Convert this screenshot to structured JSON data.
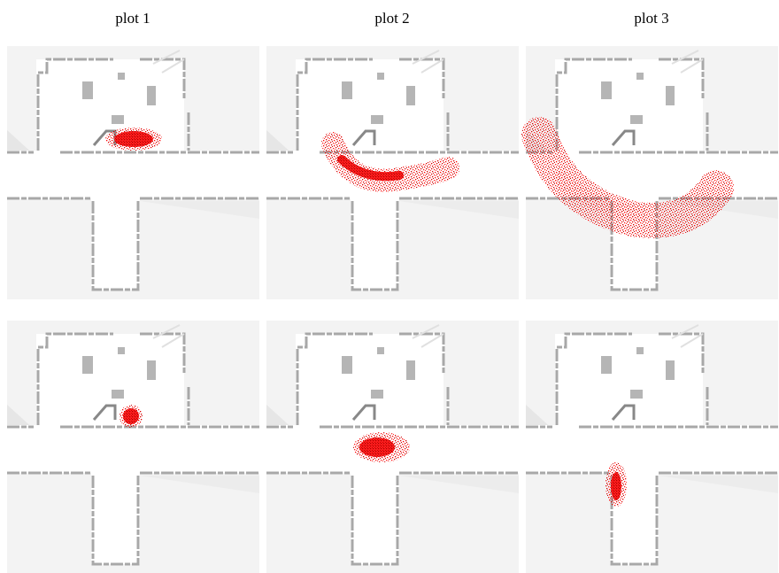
{
  "titles": [
    "plot 1",
    "plot 2",
    "plot 3"
  ]
}
